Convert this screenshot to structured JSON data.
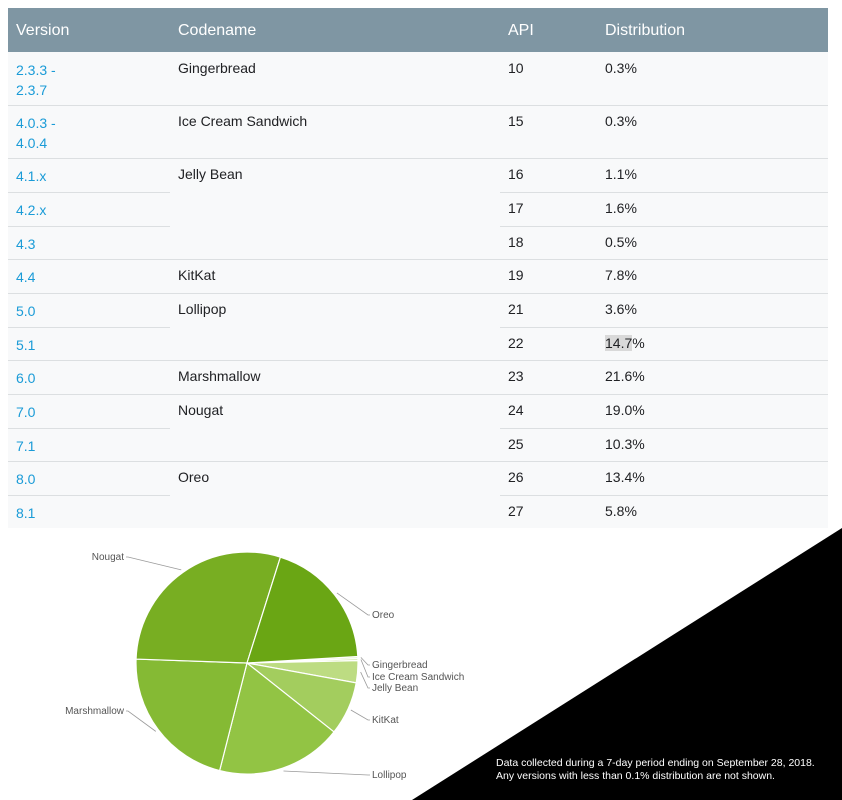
{
  "table": {
    "headers": [
      "Version",
      "Codename",
      "API",
      "Distribution"
    ],
    "rows": [
      {
        "version": "2.3.3 -",
        "version2": "2.3.7",
        "codename": "Gingerbread",
        "api": "10",
        "dist": "0.3%"
      },
      {
        "version": "4.0.3 -",
        "version2": "4.0.4",
        "codename": "Ice Cream Sandwich",
        "api": "15",
        "dist": "0.3%"
      },
      {
        "version": "4.1.x",
        "codename": "Jelly Bean",
        "api": "16",
        "dist": "1.1%"
      },
      {
        "version": "4.2.x",
        "codename": "",
        "api": "17",
        "dist": "1.6%"
      },
      {
        "version": "4.3",
        "codename": "",
        "api": "18",
        "dist": "0.5%"
      },
      {
        "version": "4.4",
        "codename": "KitKat",
        "api": "19",
        "dist": "7.8%"
      },
      {
        "version": "5.0",
        "codename": "Lollipop",
        "api": "21",
        "dist": "3.6%"
      },
      {
        "version": "5.1",
        "codename": "",
        "api": "22",
        "dist_hl": "14.7",
        "dist_rest": "%"
      },
      {
        "version": "6.0",
        "codename": "Marshmallow",
        "api": "23",
        "dist": "21.6%"
      },
      {
        "version": "7.0",
        "codename": "Nougat",
        "api": "24",
        "dist": "19.0%"
      },
      {
        "version": "7.1",
        "codename": "",
        "api": "25",
        "dist": "10.3%"
      },
      {
        "version": "8.0",
        "codename": "Oreo",
        "api": "26",
        "dist": "13.4%"
      },
      {
        "version": "8.1",
        "codename": "",
        "api": "27",
        "dist": "5.8%"
      }
    ]
  },
  "chart_data": {
    "type": "pie",
    "title": "",
    "labels": [
      "Gingerbread",
      "Ice Cream Sandwich",
      "Jelly Bean",
      "KitKat",
      "Lollipop",
      "Marshmallow",
      "Nougat",
      "Oreo"
    ],
    "values": [
      0.3,
      0.3,
      3.2,
      7.8,
      18.3,
      21.6,
      29.3,
      19.2
    ],
    "colors": [
      "#e4f0cc",
      "#d5e9ae",
      "#bddc82",
      "#a3cd5e",
      "#92c444",
      "#85ba34",
      "#78ae22",
      "#6aa614"
    ]
  },
  "footnote": {
    "line1": "Data collected during a 7-day period ending on September 28, 2018.",
    "line2": "Any versions with less than 0.1% distribution are not shown."
  }
}
